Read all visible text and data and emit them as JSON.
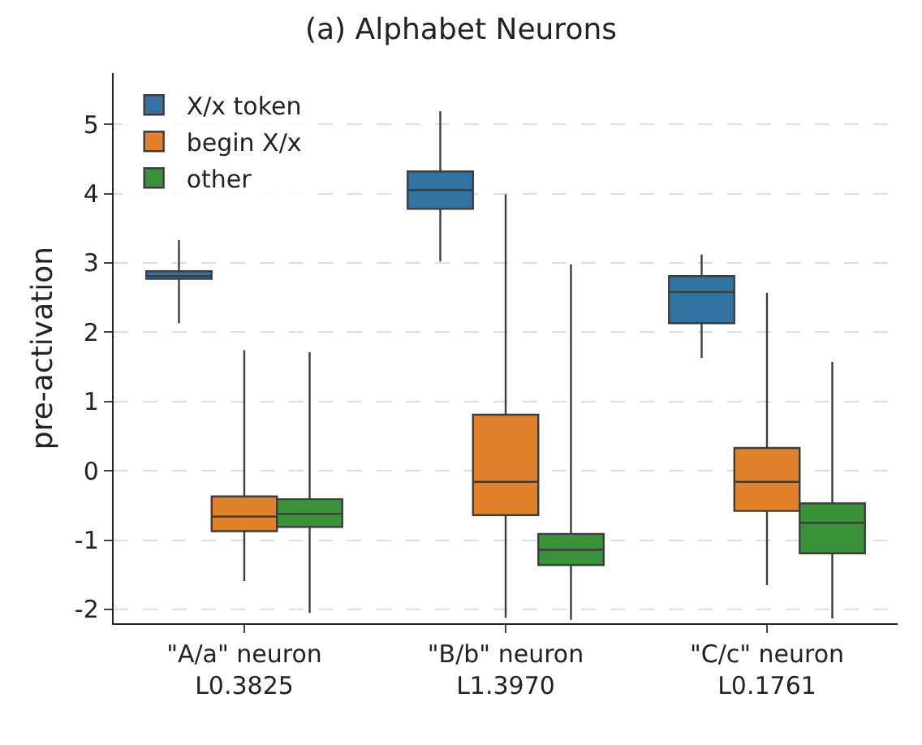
{
  "chart_data": {
    "type": "box",
    "title": "(a) Alphabet Neurons",
    "ylabel": "pre-activation",
    "categories": [
      "\"A/a\" neuron\nL0.3825",
      "\"B/b\" neuron\nL1.3970",
      "\"C/c\" neuron\nL0.1761"
    ],
    "ylim": [
      -2.2,
      5.74
    ],
    "yticks": [
      -2,
      -1,
      0,
      1,
      2,
      3,
      4,
      5
    ],
    "grid": "y",
    "legend": "top left",
    "series": [
      {
        "name": "X/x token",
        "color": "#3274a1",
        "boxes": [
          {
            "low": 2.13,
            "q1": 2.77,
            "median": 2.81,
            "q3": 2.88,
            "high": 3.33
          },
          {
            "low": 3.02,
            "q1": 3.78,
            "median": 4.05,
            "q3": 4.32,
            "high": 5.19
          },
          {
            "low": 1.63,
            "q1": 2.13,
            "median": 2.58,
            "q3": 2.81,
            "high": 3.12
          }
        ]
      },
      {
        "name": "begin X/x",
        "color": "#e1812c",
        "boxes": [
          {
            "low": -1.59,
            "q1": -0.87,
            "median": -0.66,
            "q3": -0.37,
            "high": 1.74
          },
          {
            "low": -2.12,
            "q1": -0.64,
            "median": -0.16,
            "q3": 0.81,
            "high": 3.99
          },
          {
            "low": -1.65,
            "q1": -0.58,
            "median": -0.16,
            "q3": 0.33,
            "high": 2.57
          }
        ]
      },
      {
        "name": "other",
        "color": "#3a923a",
        "boxes": [
          {
            "low": -2.05,
            "q1": -0.81,
            "median": -0.62,
            "q3": -0.41,
            "high": 1.71
          },
          {
            "low": -2.15,
            "q1": -1.36,
            "median": -1.14,
            "q3": -0.91,
            "high": 2.98
          },
          {
            "low": -2.13,
            "q1": -1.19,
            "median": -0.75,
            "q3": -0.47,
            "high": 1.57
          }
        ]
      }
    ]
  }
}
